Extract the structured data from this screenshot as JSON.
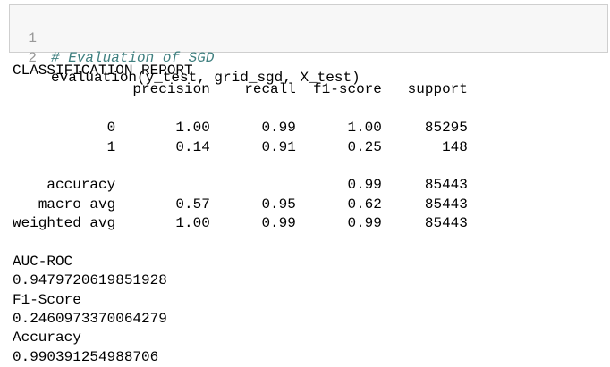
{
  "cell": {
    "lines": [
      {
        "number": "1",
        "code": "# Evaluation of SGD"
      },
      {
        "number": "2",
        "code": "evaluation(y_test, grid_sgd, X_test)"
      }
    ]
  },
  "output": {
    "report_title": "CLASSIFICATION REPORT",
    "report_header": "              precision    recall  f1-score   support",
    "class_rows": [
      "           0       1.00      0.99      1.00     85295",
      "           1       0.14      0.91      0.25       148"
    ],
    "summary_rows": [
      "    accuracy                           0.99     85443",
      "   macro avg       0.57      0.95      0.62     85443",
      "weighted avg       1.00      0.99      0.99     85443"
    ],
    "metrics": [
      {
        "label": "AUC-ROC",
        "value": "0.9479720619851928"
      },
      {
        "label": "F1-Score",
        "value": "0.2460973370064279"
      },
      {
        "label": "Accuracy",
        "value": "0.990391254988706"
      }
    ]
  }
}
